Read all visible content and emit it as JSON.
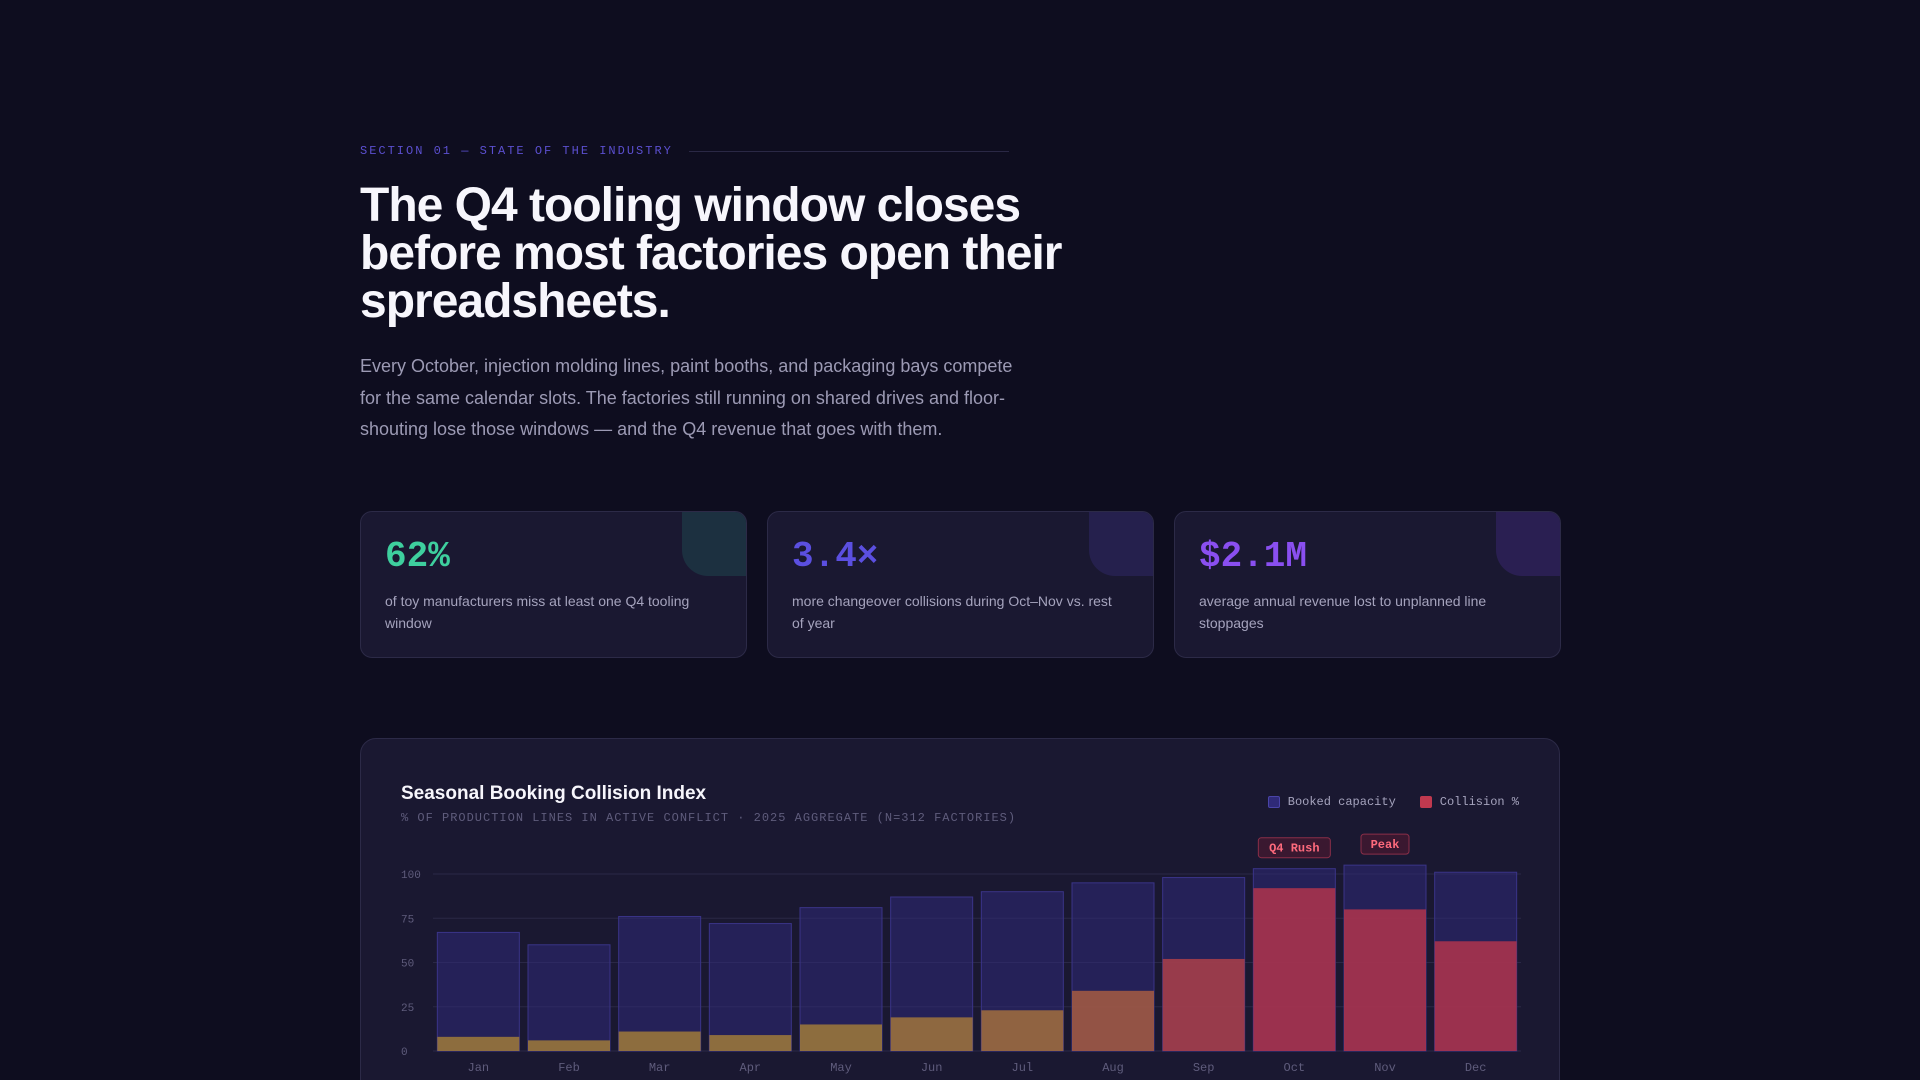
{
  "section": {
    "eyebrow": "SECTION 01 — STATE OF THE INDUSTRY",
    "headline": "The Q4 tooling window closes before most factories open their spreadsheets.",
    "lede": "Every October, injection molding lines, paint booths, and packaging bays compete for the same calendar slots. The factories still running on shared drives and floor-shouting lose those windows — and the Q4 revenue that goes with them."
  },
  "stats": [
    {
      "value": "62%",
      "desc": "of toy manufacturers miss at least one Q4 tooling window",
      "color": "#3ecf9e",
      "corner": "#1c3040"
    },
    {
      "value": "3.4×",
      "desc": "more changeover collisions during Oct–Nov vs. rest of year",
      "color": "#5b4fe0",
      "corner": "#25204d"
    },
    {
      "value": "$2.1M",
      "desc": "average annual revenue lost to unplanned line stoppages",
      "color": "#8a4ff0",
      "corner": "#2a1f52"
    }
  ],
  "colors": {
    "booked": "#2f2a78",
    "collision_low": "#a07a3a",
    "collision_high": "#b0344c",
    "annotation": "#ff6b7d"
  },
  "chart_data": {
    "type": "bar",
    "title": "Seasonal Booking Collision Index",
    "subtitle": "% OF PRODUCTION LINES IN ACTIVE CONFLICT · 2025 AGGREGATE (N=312 FACTORIES)",
    "categories": [
      "Jan",
      "Feb",
      "Mar",
      "Apr",
      "May",
      "Jun",
      "Jul",
      "Aug",
      "Sep",
      "Oct",
      "Nov",
      "Dec"
    ],
    "series": [
      {
        "name": "Booked capacity",
        "values": [
          67,
          60,
          76,
          72,
          81,
          87,
          90,
          95,
          98,
          103,
          105,
          101
        ]
      },
      {
        "name": "Collision %",
        "values": [
          8,
          6,
          11,
          9,
          15,
          19,
          23,
          34,
          52,
          92,
          80,
          62
        ]
      }
    ],
    "yticks": [
      0,
      25,
      50,
      75,
      100
    ],
    "ylim": [
      0,
      105
    ],
    "annotations": [
      {
        "category": "Oct",
        "label": "Q4 Rush"
      },
      {
        "category": "Nov",
        "label": "Peak"
      }
    ],
    "grid": true,
    "legend_position": "top-right"
  }
}
